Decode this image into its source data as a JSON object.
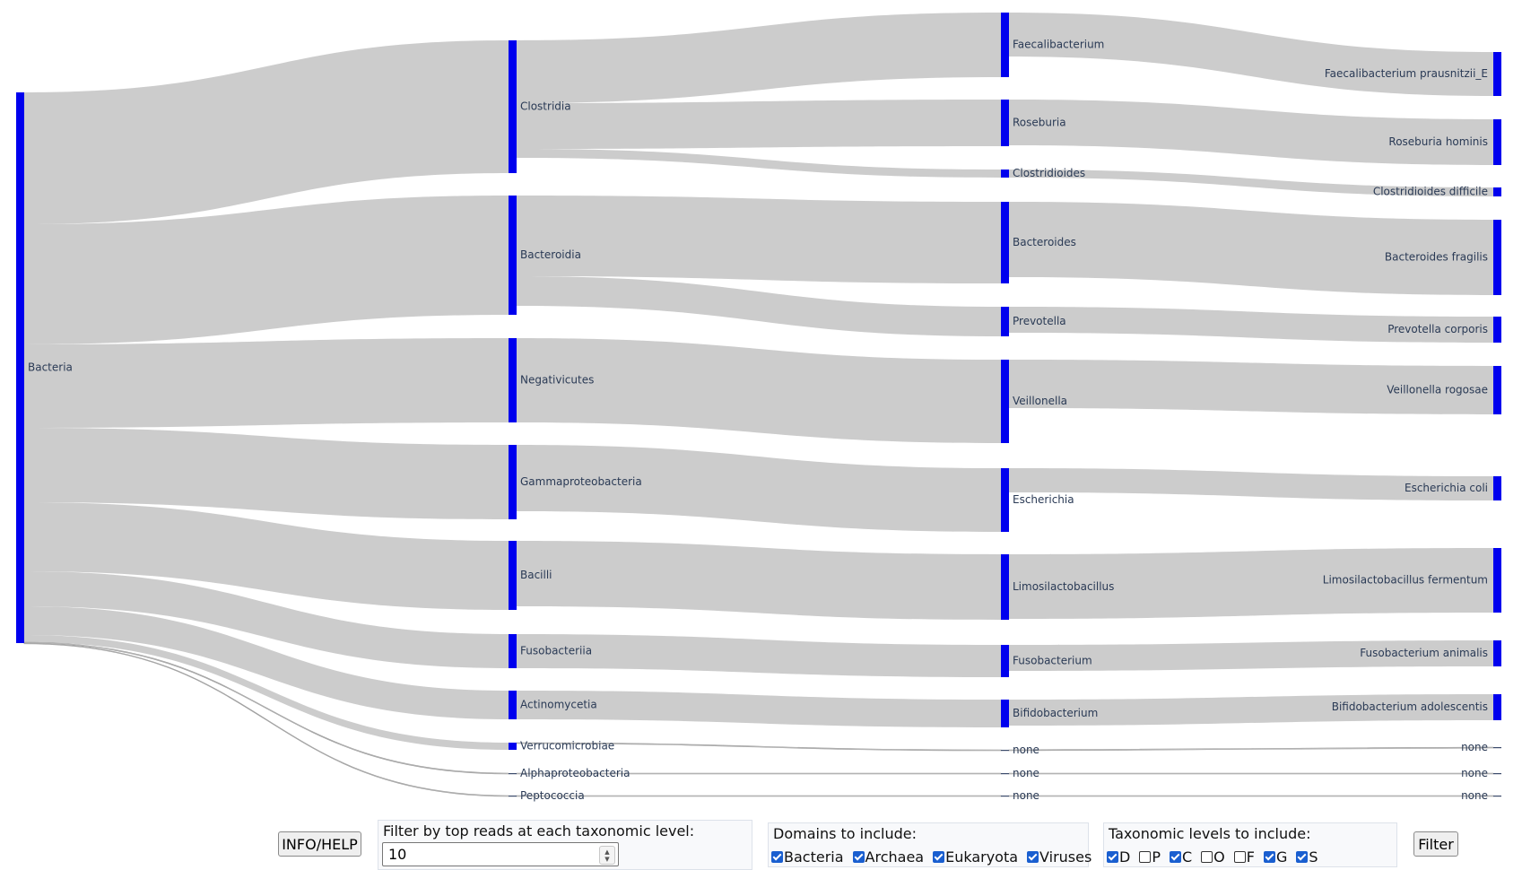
{
  "diagram": {
    "type": "sankey",
    "colors": {
      "node": "#0000ee",
      "link": "#cccccc",
      "label": "#2a3a55"
    },
    "columns": [
      {
        "nodes": [
          {
            "id": "bacteria",
            "label": "Bacteria"
          }
        ]
      },
      {
        "nodes": [
          {
            "id": "clostridia",
            "label": "Clostridia"
          },
          {
            "id": "bacteroidia",
            "label": "Bacteroidia"
          },
          {
            "id": "negativicutes",
            "label": "Negativicutes"
          },
          {
            "id": "gammaproteobacteria",
            "label": "Gammaproteobacteria"
          },
          {
            "id": "bacilli",
            "label": "Bacilli"
          },
          {
            "id": "fusobacteriia",
            "label": "Fusobacteriia"
          },
          {
            "id": "actinomycetia",
            "label": "Actinomycetia"
          },
          {
            "id": "verrucomicrobiae",
            "label": "Verrucomicrobiae"
          },
          {
            "id": "alphaproteobacteria",
            "label": "Alphaproteobacteria"
          },
          {
            "id": "peptococcia",
            "label": "Peptococcia"
          }
        ]
      },
      {
        "nodes": [
          {
            "id": "faecalibacterium",
            "label": "Faecalibacterium"
          },
          {
            "id": "roseburia",
            "label": "Roseburia"
          },
          {
            "id": "clostridioides",
            "label": "Clostridioides"
          },
          {
            "id": "bacteroides",
            "label": "Bacteroides"
          },
          {
            "id": "prevotella",
            "label": "Prevotella"
          },
          {
            "id": "veillonella",
            "label": "Veillonella"
          },
          {
            "id": "escherichia",
            "label": "Escherichia"
          },
          {
            "id": "limosilactobacillus",
            "label": "Limosilactobacillus"
          },
          {
            "id": "fusobacterium",
            "label": "Fusobacterium"
          },
          {
            "id": "bifidobacterium",
            "label": "Bifidobacterium"
          },
          {
            "id": "none_g1",
            "label": "none"
          },
          {
            "id": "none_g2",
            "label": "none"
          },
          {
            "id": "none_g3",
            "label": "none"
          }
        ]
      },
      {
        "nodes": [
          {
            "id": "f_prausnitzii",
            "label": "Faecalibacterium prausnitzii_E"
          },
          {
            "id": "r_hominis",
            "label": "Roseburia hominis"
          },
          {
            "id": "c_difficile",
            "label": "Clostridioides difficile"
          },
          {
            "id": "b_fragilis",
            "label": "Bacteroides fragilis"
          },
          {
            "id": "p_corporis",
            "label": "Prevotella corporis"
          },
          {
            "id": "v_rogosae",
            "label": "Veillonella rogosae"
          },
          {
            "id": "e_coli",
            "label": "Escherichia coli"
          },
          {
            "id": "l_fermentum",
            "label": "Limosilactobacillus fermentum"
          },
          {
            "id": "f_animalis",
            "label": "Fusobacterium animalis"
          },
          {
            "id": "b_adolescentis",
            "label": "Bifidobacterium adolescentis"
          },
          {
            "id": "none_s1",
            "label": "none"
          },
          {
            "id": "none_s2",
            "label": "none"
          },
          {
            "id": "none_s3",
            "label": "none"
          }
        ]
      }
    ]
  },
  "controls": {
    "info_button": "INFO/HELP",
    "filter_top": {
      "title": "Filter by top reads at each taxonomic level:",
      "value": "10"
    },
    "domains": {
      "title": "Domains to include:",
      "options": [
        {
          "label": "Bacteria",
          "checked": true
        },
        {
          "label": "Archaea",
          "checked": true
        },
        {
          "label": "Eukaryota",
          "checked": true
        },
        {
          "label": "Viruses",
          "checked": true
        }
      ]
    },
    "levels": {
      "title": "Taxonomic levels to include:",
      "options": [
        {
          "label": "D",
          "checked": true
        },
        {
          "label": "P",
          "checked": false
        },
        {
          "label": "C",
          "checked": true
        },
        {
          "label": "O",
          "checked": false
        },
        {
          "label": "F",
          "checked": false
        },
        {
          "label": "G",
          "checked": true
        },
        {
          "label": "S",
          "checked": true
        }
      ]
    },
    "filter_button": "Filter"
  }
}
